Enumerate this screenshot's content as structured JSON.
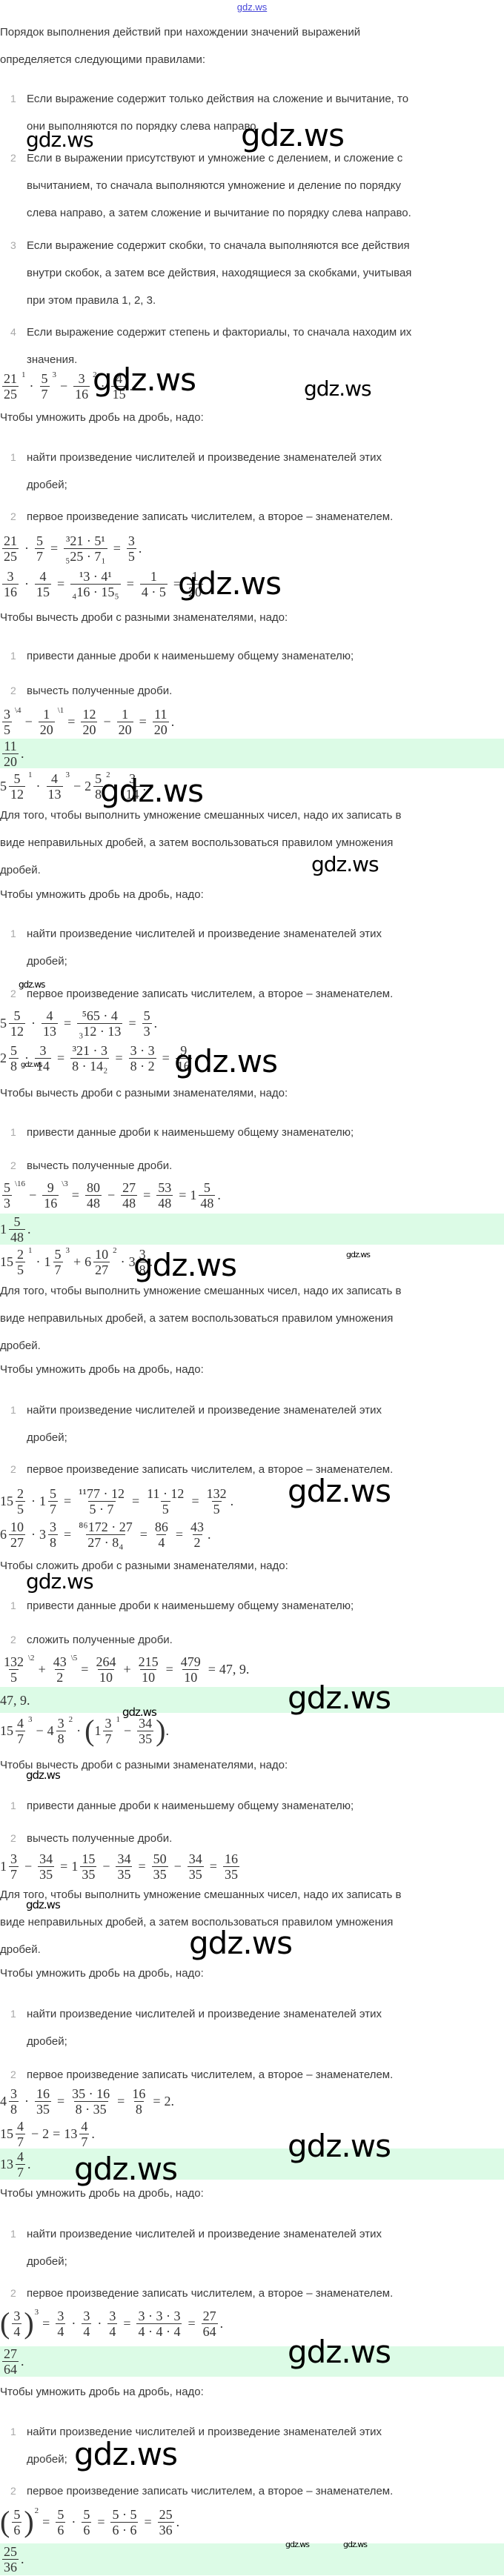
{
  "header": {
    "site_link": "gdz.ws"
  },
  "watermark": {
    "text": "gdz.ws"
  },
  "intro": {
    "lines": [
      "Порядок выполнения действий при нахождении значений выражений",
      "определяется следующими правилами:"
    ],
    "rules": [
      {
        "num": "1",
        "lines": [
          "Если выражение содержит только действия на сложение и вычитание, то",
          "они выполняются по порядку слева направо."
        ]
      },
      {
        "num": "2",
        "lines": [
          "Если в выражении присутствуют и умножение с делением, и сложение с",
          "вычитанием, то сначала выполняются умножение и деление по порядку",
          "слева направо, а затем сложение и вычитание по порядку слева направо."
        ]
      },
      {
        "num": "3",
        "lines": [
          "Если выражение содержит скобки, то сначала выполняются все действия",
          "внутри скобок, а затем все действия, находящиеся за скобками, учитывая",
          "при этом правила 1, 2, 3."
        ]
      },
      {
        "num": "4",
        "lines": [
          "Если выражение содержит степень и факториалы, то сначала находим их",
          "значения."
        ]
      }
    ]
  },
  "phrases": {
    "mul_intro": "Чтобы умножить дробь на дробь, надо:",
    "mul_step1": [
      "найти произведение числителей и произведение знаменателей этих",
      "дробей;"
    ],
    "mul_step2": "первое произведение записать числителем, а второе – знаменателем.",
    "sub_intro": "Чтобы вычесть дроби с разными знаменателями, надо:",
    "add_intro": "Чтобы сложить дроби с разными знаменателями, надо:",
    "lcd_step": "привести данные дроби к наименьшему общему знаменателю;",
    "sub_step": "вычесть полученные дроби.",
    "add_step": "сложить полученные дроби.",
    "mixed_rule": [
      "Для того, чтобы выполнить умножение смешанных чисел, надо их записать в",
      "виде неправильных дробей, а затем воспользоваться правилом умножения",
      "дробей."
    ],
    "n1": "1",
    "n2": "2"
  },
  "formulas": {
    "f1": [
      [
        "f",
        "21",
        "25"
      ],
      [
        "s",
        "1"
      ],
      [
        "o",
        "·"
      ],
      [
        "f",
        "5",
        "7"
      ],
      [
        "s",
        "3"
      ],
      [
        "o",
        "−"
      ],
      [
        "f",
        "3",
        "16"
      ],
      [
        "s",
        "2"
      ],
      [
        "o",
        "·"
      ],
      [
        "f",
        "4",
        "15"
      ],
      [
        "x",
        "."
      ]
    ],
    "f2": [
      [
        "f",
        "21",
        "25"
      ],
      [
        "o",
        "·"
      ],
      [
        "f",
        "5",
        "7"
      ],
      [
        "o",
        "="
      ],
      [
        "f",
        "³21 · 5¹",
        "₅25 · 7₁"
      ],
      [
        "o",
        "="
      ],
      [
        "f",
        "3",
        "5"
      ],
      [
        "x",
        "."
      ]
    ],
    "f3": [
      [
        "f",
        "3",
        "16"
      ],
      [
        "o",
        "·"
      ],
      [
        "f",
        "4",
        "15"
      ],
      [
        "o",
        "="
      ],
      [
        "f",
        "¹3 · 4¹",
        "₄16 · 15₅"
      ],
      [
        "o",
        "="
      ],
      [
        "f",
        "1",
        "4 · 5"
      ],
      [
        "o",
        "="
      ],
      [
        "f",
        "1",
        "20"
      ]
    ],
    "f4": [
      [
        "f",
        "3",
        "5"
      ],
      [
        "s",
        "\\4"
      ],
      [
        "o",
        "−"
      ],
      [
        "f",
        "1",
        "20"
      ],
      [
        "s",
        "\\1"
      ],
      [
        "o",
        "="
      ],
      [
        "f",
        "12",
        "20"
      ],
      [
        "o",
        "−"
      ],
      [
        "f",
        "1",
        "20"
      ],
      [
        "o",
        "="
      ],
      [
        "f",
        "11",
        "20"
      ],
      [
        "x",
        "."
      ]
    ],
    "a1": [
      [
        "f",
        "11",
        "20"
      ],
      [
        "x",
        "."
      ]
    ],
    "f5": [
      [
        "m",
        "5",
        "5",
        "12"
      ],
      [
        "s",
        "1"
      ],
      [
        "o",
        "·"
      ],
      [
        "f",
        "4",
        "13"
      ],
      [
        "s",
        "3"
      ],
      [
        "o",
        "−"
      ],
      [
        "m",
        "2",
        "5",
        "8"
      ],
      [
        "s",
        "2"
      ],
      [
        "o",
        "·"
      ],
      [
        "f",
        "3",
        "14"
      ],
      [
        "x",
        "."
      ]
    ],
    "f6": [
      [
        "m",
        "5",
        "5",
        "12"
      ],
      [
        "o",
        "·"
      ],
      [
        "f",
        "4",
        "13"
      ],
      [
        "o",
        "="
      ],
      [
        "f",
        "⁵65 · 4",
        "₃12 · 13"
      ],
      [
        "o",
        "="
      ],
      [
        "f",
        "5",
        "3"
      ],
      [
        "x",
        "."
      ]
    ],
    "f7": [
      [
        "m",
        "2",
        "5",
        "8"
      ],
      [
        "o",
        "·"
      ],
      [
        "f",
        "3",
        "14"
      ],
      [
        "o",
        "="
      ],
      [
        "f",
        "³21 · 3",
        "8 · 14₂"
      ],
      [
        "o",
        "="
      ],
      [
        "f",
        "3 · 3",
        "8 · 2"
      ],
      [
        "o",
        "="
      ],
      [
        "f",
        "9",
        "16"
      ],
      [
        "x",
        "."
      ]
    ],
    "f8": [
      [
        "f",
        "5",
        "3"
      ],
      [
        "s",
        "\\16"
      ],
      [
        "o",
        "−"
      ],
      [
        "f",
        "9",
        "16"
      ],
      [
        "s",
        "\\3"
      ],
      [
        "o",
        "="
      ],
      [
        "f",
        "80",
        "48"
      ],
      [
        "o",
        "−"
      ],
      [
        "f",
        "27",
        "48"
      ],
      [
        "o",
        "="
      ],
      [
        "f",
        "53",
        "48"
      ],
      [
        "o",
        "="
      ],
      [
        "m",
        "1",
        "5",
        "48"
      ],
      [
        "x",
        "."
      ]
    ],
    "a2": [
      [
        "m",
        "1",
        "5",
        "48"
      ],
      [
        "x",
        "."
      ]
    ],
    "f9": [
      [
        "m",
        "15",
        "2",
        "5"
      ],
      [
        "s",
        "1"
      ],
      [
        "o",
        "·"
      ],
      [
        "m",
        "1",
        "5",
        "7"
      ],
      [
        "s",
        "3"
      ],
      [
        "o",
        "+"
      ],
      [
        "m",
        "6",
        "10",
        "27"
      ],
      [
        "s",
        "2"
      ],
      [
        "o",
        "·"
      ],
      [
        "m",
        "3",
        "3",
        "8"
      ],
      [
        "x",
        "."
      ]
    ],
    "f10": [
      [
        "m",
        "15",
        "2",
        "5"
      ],
      [
        "o",
        "·"
      ],
      [
        "m",
        "1",
        "5",
        "7"
      ],
      [
        "o",
        "="
      ],
      [
        "f",
        "¹¹77 · 12",
        "5 · 7"
      ],
      [
        "o",
        "="
      ],
      [
        "f",
        "11 · 12",
        "5"
      ],
      [
        "o",
        "="
      ],
      [
        "f",
        "132",
        "5"
      ],
      [
        "x",
        "."
      ]
    ],
    "f11": [
      [
        "m",
        "6",
        "10",
        "27"
      ],
      [
        "o",
        "·"
      ],
      [
        "m",
        "3",
        "3",
        "8"
      ],
      [
        "o",
        "="
      ],
      [
        "f",
        "⁸⁶172 · 27",
        "27 · 8₄"
      ],
      [
        "o",
        "="
      ],
      [
        "f",
        "86",
        "4"
      ],
      [
        "o",
        "="
      ],
      [
        "f",
        "43",
        "2"
      ],
      [
        "x",
        "."
      ]
    ],
    "f12": [
      [
        "f",
        "132",
        "5"
      ],
      [
        "s",
        "\\2"
      ],
      [
        "o",
        "+"
      ],
      [
        "f",
        "43",
        "2"
      ],
      [
        "s",
        "\\5"
      ],
      [
        "o",
        "="
      ],
      [
        "f",
        "264",
        "10"
      ],
      [
        "o",
        "+"
      ],
      [
        "f",
        "215",
        "10"
      ],
      [
        "o",
        "="
      ],
      [
        "f",
        "479",
        "10"
      ],
      [
        "o",
        "="
      ],
      [
        "x",
        "47, 9."
      ]
    ],
    "a3": [
      [
        "x",
        "47, 9."
      ]
    ],
    "f13": [
      [
        "m",
        "15",
        "4",
        "7"
      ],
      [
        "s",
        "3"
      ],
      [
        "o",
        "−"
      ],
      [
        "m",
        "4",
        "3",
        "8"
      ],
      [
        "s",
        "2"
      ],
      [
        "o",
        "·"
      ],
      [
        "P",
        "("
      ],
      [
        "m",
        "1",
        "3",
        "7"
      ],
      [
        "s",
        "1"
      ],
      [
        "o",
        "−"
      ],
      [
        "f",
        "34",
        "35"
      ],
      [
        "P",
        ")"
      ],
      [
        "x",
        "."
      ]
    ],
    "f14": [
      [
        "m",
        "1",
        "3",
        "7"
      ],
      [
        "o",
        "−"
      ],
      [
        "f",
        "34",
        "35"
      ],
      [
        "o",
        "="
      ],
      [
        "m",
        "1",
        "15",
        "35"
      ],
      [
        "o",
        "−"
      ],
      [
        "f",
        "34",
        "35"
      ],
      [
        "o",
        "="
      ],
      [
        "f",
        "50",
        "35"
      ],
      [
        "o",
        "−"
      ],
      [
        "f",
        "34",
        "35"
      ],
      [
        "o",
        "="
      ],
      [
        "f",
        "16",
        "35"
      ]
    ],
    "f15": [
      [
        "m",
        "4",
        "3",
        "8"
      ],
      [
        "o",
        "·"
      ],
      [
        "f",
        "16",
        "35"
      ],
      [
        "o",
        "="
      ],
      [
        "f",
        "35 · 16",
        "8 · 35"
      ],
      [
        "o",
        "="
      ],
      [
        "f",
        "16",
        "8"
      ],
      [
        "o",
        "="
      ],
      [
        "x",
        "2."
      ]
    ],
    "f16": [
      [
        "m",
        "15",
        "4",
        "7"
      ],
      [
        "o",
        "−"
      ],
      [
        "x",
        "2"
      ],
      [
        "o",
        "="
      ],
      [
        "m",
        "13",
        "4",
        "7"
      ],
      [
        "x",
        "."
      ]
    ],
    "a4": [
      [
        "m",
        "13",
        "4",
        "7"
      ],
      [
        "x",
        "."
      ]
    ],
    "f17": [
      [
        "P",
        "("
      ],
      [
        "f",
        "3",
        "4"
      ],
      [
        "P",
        ")"
      ],
      [
        "s",
        "3"
      ],
      [
        "o",
        "="
      ],
      [
        "f",
        "3",
        "4"
      ],
      [
        "o",
        "·"
      ],
      [
        "f",
        "3",
        "4"
      ],
      [
        "o",
        "·"
      ],
      [
        "f",
        "3",
        "4"
      ],
      [
        "o",
        "="
      ],
      [
        "f",
        "3 · 3 · 3",
        "4 · 4 · 4"
      ],
      [
        "o",
        "="
      ],
      [
        "f",
        "27",
        "64"
      ],
      [
        "x",
        "."
      ]
    ],
    "a5": [
      [
        "f",
        "27",
        "64"
      ],
      [
        "x",
        "."
      ]
    ],
    "f18": [
      [
        "P",
        "("
      ],
      [
        "f",
        "5",
        "6"
      ],
      [
        "P",
        ")"
      ],
      [
        "s",
        "2"
      ],
      [
        "o",
        "="
      ],
      [
        "f",
        "5",
        "6"
      ],
      [
        "o",
        "·"
      ],
      [
        "f",
        "5",
        "6"
      ],
      [
        "o",
        "="
      ],
      [
        "f",
        "5 · 5",
        "6 · 6"
      ],
      [
        "o",
        "="
      ],
      [
        "f",
        "25",
        "36"
      ],
      [
        "x",
        "."
      ]
    ],
    "a6": [
      [
        "f",
        "25",
        "36"
      ],
      [
        "x",
        "."
      ]
    ]
  },
  "colors": {
    "answer_band": "#dcfbe6",
    "link": "#4848d8",
    "text": "#3a3a3a",
    "list_number": "#a8a8a8"
  }
}
